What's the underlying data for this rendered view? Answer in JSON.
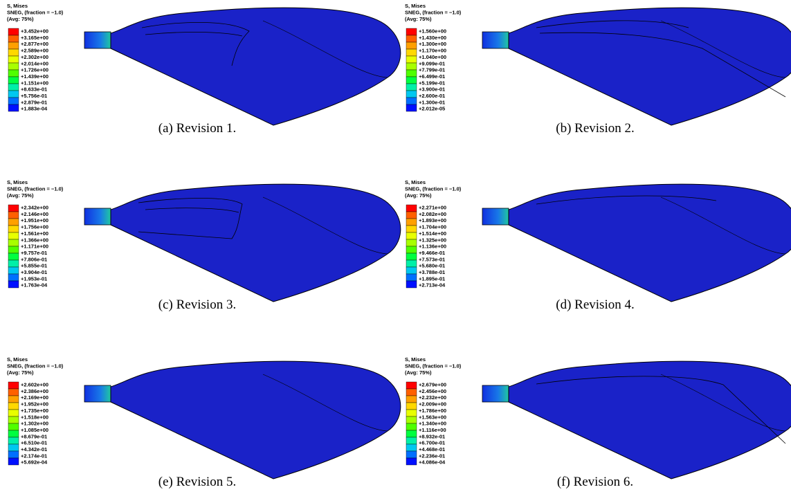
{
  "panels": [
    {
      "header": [
        "S, Mises",
        "SNEG, (fraction = −1.0)",
        "(Avg: 75%)"
      ],
      "legend": [
        "+3.452e+00",
        "+3.165e+00",
        "+2.877e+00",
        "+2.589e+00",
        "+2.302e+00",
        "+2.014e+00",
        "+1.726e+00",
        "+1.439e+00",
        "+1.151e+00",
        "+8.633e-01",
        "+5.756e-01",
        "+2.879e-01",
        "+1.883e-04"
      ],
      "caption": "(a) Revision 1."
    },
    {
      "header": [
        "S, Mises",
        "SNEG, (fraction = −1.0)",
        "(Avg: 75%)"
      ],
      "legend": [
        "+1.560e+00",
        "+1.430e+00",
        "+1.300e+00",
        "+1.170e+00",
        "+1.040e+00",
        "+9.099e-01",
        "+7.799e-01",
        "+6.499e-01",
        "+5.199e-01",
        "+3.900e-01",
        "+2.600e-01",
        "+1.300e-01",
        "+2.012e-05"
      ],
      "caption": "(b) Revision 2."
    },
    {
      "header": [
        "S, Mises",
        "SNEG, (fraction = −1.0)",
        "(Avg: 75%)"
      ],
      "legend": [
        "+2.342e+00",
        "+2.146e+00",
        "+1.951e+00",
        "+1.756e+00",
        "+1.561e+00",
        "+1.366e+00",
        "+1.171e+00",
        "+9.757e-01",
        "+7.806e-01",
        "+5.855e-01",
        "+3.904e-01",
        "+1.953e-01",
        "+1.763e-04"
      ],
      "caption": "(c) Revision 3."
    },
    {
      "header": [
        "S, Mises",
        "SNEG, (fraction = −1.0)",
        "(Avg: 75%)"
      ],
      "legend": [
        "+2.271e+00",
        "+2.082e+00",
        "+1.893e+00",
        "+1.704e+00",
        "+1.514e+00",
        "+1.325e+00",
        "+1.136e+00",
        "+9.466e-01",
        "+7.573e-01",
        "+5.680e-01",
        "+3.788e-01",
        "+1.895e-01",
        "+2.713e-04"
      ],
      "caption": "(d) Revision 4."
    },
    {
      "header": [
        "S, Mises",
        "SNEG, (fraction = −1.0)",
        "(Avg: 75%)"
      ],
      "legend": [
        "+2.602e+00",
        "+2.386e+00",
        "+2.169e+00",
        "+1.952e+00",
        "+1.735e+00",
        "+1.518e+00",
        "+1.302e+00",
        "+1.085e+00",
        "+8.679e-01",
        "+6.510e-01",
        "+4.342e-01",
        "+2.174e-01",
        "+5.692e-04"
      ],
      "caption": "(e) Revision 5."
    },
    {
      "header": [
        "S, Mises",
        "SNEG, (fraction = −1.0)",
        "(Avg: 75%)"
      ],
      "legend": [
        "+2.679e+00",
        "+2.456e+00",
        "+2.232e+00",
        "+2.009e+00",
        "+1.786e+00",
        "+1.563e+00",
        "+1.340e+00",
        "+1.116e+00",
        "+8.932e-01",
        "+6.700e-01",
        "+4.468e-01",
        "+2.236e-01",
        "+4.086e-04"
      ],
      "caption": "(f) Revision 6."
    }
  ]
}
